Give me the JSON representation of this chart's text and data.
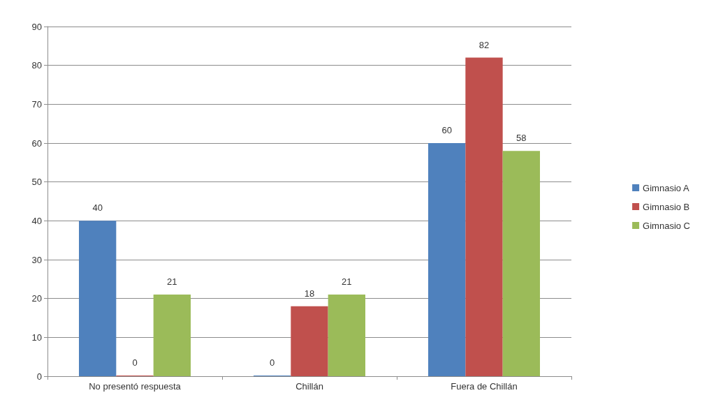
{
  "chart_data": {
    "type": "bar",
    "categories": [
      "No presentó respuesta",
      "Chillán",
      "Fuera de Chillán"
    ],
    "series": [
      {
        "name": "Gimnasio A",
        "color": "#4f81bd",
        "values": [
          40,
          0,
          60
        ]
      },
      {
        "name": "Gimnasio B",
        "color": "#c0504d",
        "values": [
          0,
          18,
          82
        ]
      },
      {
        "name": "Gimnasio C",
        "color": "#9bbb59",
        "values": [
          21,
          21,
          58
        ]
      }
    ],
    "ylim": [
      0,
      90
    ],
    "yticks": [
      0,
      10,
      20,
      30,
      40,
      50,
      60,
      70,
      80,
      90
    ],
    "grid": "y",
    "legend": "right",
    "data_labels": true
  }
}
